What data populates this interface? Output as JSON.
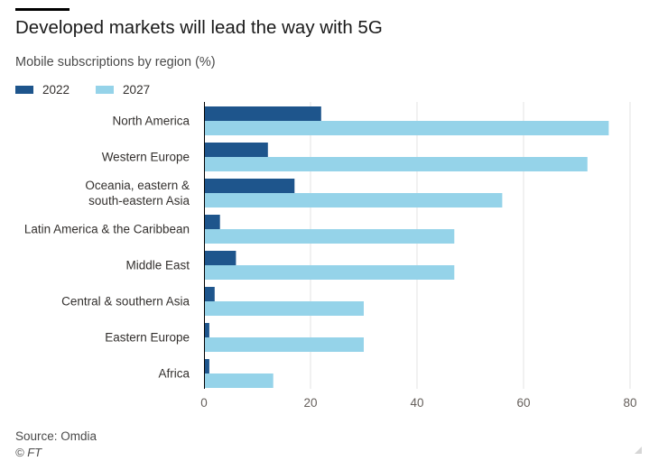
{
  "header": {
    "title": "Developed markets will lead the way with 5G",
    "subtitle": "Mobile subscriptions by region (%)"
  },
  "colors": {
    "series_2022": "#1e558c",
    "series_2027": "#95d3e9",
    "grid": "#e3e3e3",
    "axis_text": "#66605c"
  },
  "chart_data": {
    "type": "bar",
    "orientation": "horizontal",
    "title": "Developed markets will lead the way with 5G",
    "subtitle": "Mobile subscriptions by region (%)",
    "categories": [
      "North America",
      "Western Europe",
      "Oceania, eastern & south-eastern Asia",
      "Latin America & the Caribbean",
      "Middle East",
      "Central & southern Asia",
      "Eastern Europe",
      "Africa"
    ],
    "category_lines": [
      [
        "North America"
      ],
      [
        "Western Europe"
      ],
      [
        "Oceania, eastern &",
        "south-eastern Asia"
      ],
      [
        "Latin America & the Caribbean"
      ],
      [
        "Middle East"
      ],
      [
        "Central & southern Asia"
      ],
      [
        "Eastern Europe"
      ],
      [
        "Africa"
      ]
    ],
    "series": [
      {
        "name": "2022",
        "values": [
          22,
          12,
          17,
          3,
          6,
          2,
          1,
          1
        ]
      },
      {
        "name": "2027",
        "values": [
          76,
          72,
          56,
          47,
          47,
          30,
          30,
          13
        ]
      }
    ],
    "xlim": [
      0,
      80
    ],
    "xticks": [
      0,
      20,
      40,
      60,
      80
    ],
    "xlabel": "",
    "ylabel": "",
    "grid": true,
    "legend_position": "top-left"
  },
  "footer": {
    "source": "Source: Omdia",
    "credit": "© FT"
  }
}
